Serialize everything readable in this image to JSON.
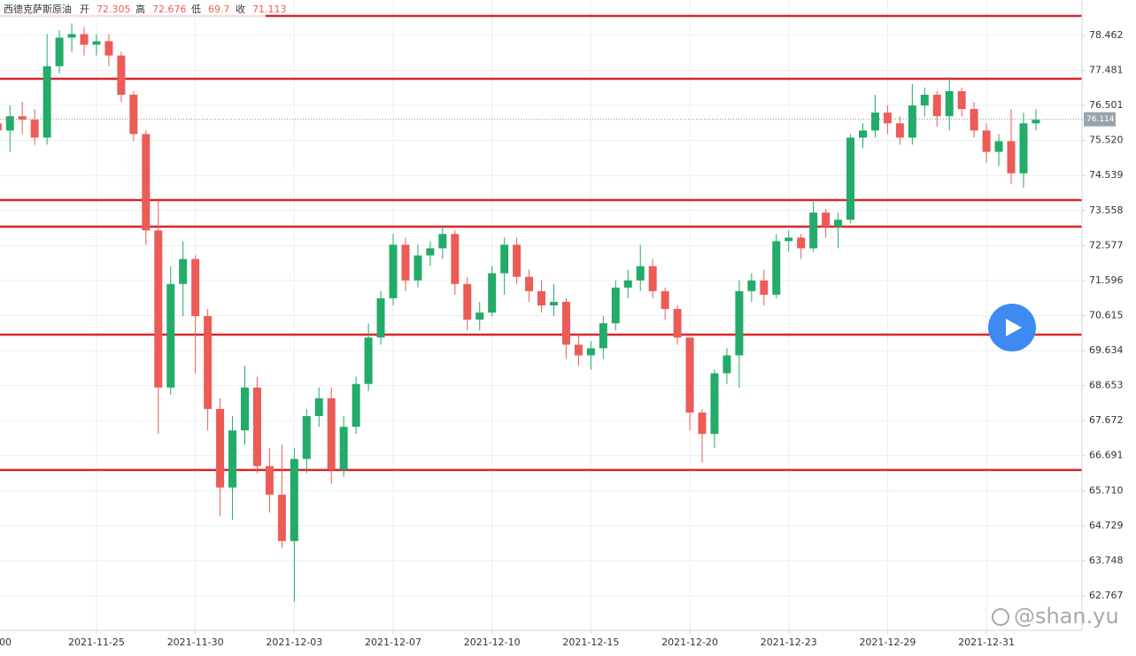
{
  "chart_data": {
    "type": "candlestick",
    "header": {
      "name": "西德克萨斯原油",
      "open_label": "开",
      "open": 72.305,
      "high_label": "高",
      "high": 72.676,
      "low_label": "低",
      "low": 69.7,
      "close_label": "收",
      "close": 71.113
    },
    "categories": [
      "00",
      null,
      null,
      null,
      null,
      null,
      null,
      null,
      "2021-11-25",
      null,
      null,
      null,
      null,
      null,
      null,
      null,
      "2021-11-30",
      null,
      null,
      null,
      null,
      null,
      null,
      null,
      "2021-12-03",
      null,
      null,
      null,
      null,
      null,
      null,
      null,
      "2021-12-07",
      null,
      null,
      null,
      null,
      null,
      null,
      null,
      "2021-12-10",
      null,
      null,
      null,
      null,
      null,
      null,
      null,
      "2021-12-15",
      null,
      null,
      null,
      null,
      null,
      null,
      null,
      "2021-12-20",
      null,
      null,
      null,
      null,
      null,
      null,
      null,
      "2021-12-23",
      null,
      null,
      null,
      null,
      null,
      null,
      null,
      "2021-12-29",
      null,
      null,
      null,
      null,
      null,
      null,
      null,
      "2021-12-31",
      null,
      null,
      null,
      null
    ],
    "open": [
      76.0,
      75.8,
      76.2,
      76.1,
      75.6,
      77.6,
      78.4,
      78.5,
      78.2,
      78.3,
      77.9,
      76.8,
      75.7,
      73.0,
      68.6,
      71.5,
      72.2,
      70.6,
      68.0,
      65.8,
      67.4,
      68.6,
      66.4,
      65.6,
      64.3,
      66.6,
      67.8,
      68.3,
      66.3,
      67.5,
      68.7,
      70.0,
      71.1,
      72.6,
      71.6,
      72.3,
      72.5,
      72.9,
      71.5,
      70.5,
      70.7,
      71.8,
      72.6,
      71.7,
      71.3,
      70.9,
      71.0,
      69.8,
      69.5,
      69.7,
      70.4,
      71.4,
      71.6,
      72.0,
      71.3,
      70.8,
      70.0,
      67.9,
      67.3,
      69.0,
      69.5,
      71.3,
      71.6,
      71.2,
      72.7,
      72.8,
      72.5,
      73.5,
      73.1,
      73.3,
      75.6,
      75.8,
      76.3,
      76.0,
      75.6,
      76.5,
      76.8,
      76.2,
      76.9,
      76.4,
      75.8,
      75.2,
      75.5,
      74.6,
      76.0
    ],
    "high": [
      76.4,
      76.5,
      76.6,
      76.4,
      78.5,
      78.6,
      78.8,
      78.7,
      78.5,
      78.5,
      78.0,
      76.9,
      75.8,
      73.9,
      72.0,
      72.7,
      72.3,
      70.8,
      68.3,
      67.8,
      69.2,
      68.9,
      66.9,
      67.0,
      66.9,
      68.0,
      68.6,
      68.6,
      67.8,
      68.9,
      70.4,
      71.3,
      72.9,
      72.8,
      72.6,
      72.7,
      73.1,
      73.0,
      71.7,
      71.0,
      72.0,
      72.8,
      72.8,
      71.9,
      71.6,
      71.5,
      71.1,
      70.1,
      69.9,
      70.6,
      71.6,
      71.9,
      72.6,
      72.2,
      71.4,
      70.9,
      70.0,
      68.0,
      69.1,
      69.7,
      71.6,
      71.8,
      71.9,
      72.9,
      73.0,
      72.9,
      73.8,
      73.6,
      73.5,
      75.7,
      76.0,
      76.8,
      76.5,
      76.2,
      77.1,
      77.0,
      76.9,
      77.3,
      77.0,
      76.6,
      76.0,
      75.7,
      76.4,
      76.3,
      76.4
    ],
    "low": [
      75.6,
      75.2,
      75.7,
      75.4,
      75.4,
      77.4,
      78.0,
      77.9,
      77.9,
      77.6,
      76.6,
      75.5,
      72.6,
      67.3,
      68.4,
      70.6,
      69.0,
      67.4,
      65.0,
      64.9,
      67.0,
      66.2,
      65.1,
      64.1,
      62.6,
      66.2,
      67.5,
      65.9,
      66.1,
      67.3,
      68.5,
      69.8,
      70.9,
      71.3,
      71.4,
      72.0,
      72.2,
      71.2,
      70.2,
      70.2,
      70.6,
      71.2,
      71.5,
      71.0,
      70.7,
      70.6,
      69.4,
      69.2,
      69.1,
      69.4,
      70.2,
      71.1,
      71.3,
      71.1,
      70.5,
      69.8,
      67.4,
      66.5,
      66.9,
      68.7,
      68.6,
      71.0,
      70.9,
      71.1,
      72.4,
      72.2,
      72.4,
      72.8,
      72.5,
      73.2,
      75.3,
      75.6,
      75.7,
      75.4,
      75.4,
      76.2,
      75.9,
      75.8,
      76.2,
      75.6,
      74.9,
      74.8,
      74.3,
      74.2,
      75.8
    ],
    "close": [
      75.8,
      76.2,
      76.1,
      75.6,
      77.6,
      78.4,
      78.5,
      78.2,
      78.3,
      77.9,
      76.8,
      75.7,
      73.0,
      68.6,
      71.5,
      72.2,
      70.6,
      68.0,
      65.8,
      67.4,
      68.6,
      66.4,
      65.6,
      64.3,
      66.6,
      67.8,
      68.3,
      66.3,
      67.5,
      68.7,
      70.0,
      71.1,
      72.6,
      71.6,
      72.3,
      72.5,
      72.9,
      71.5,
      70.5,
      70.7,
      71.8,
      72.6,
      71.7,
      71.3,
      70.9,
      71.0,
      69.8,
      69.5,
      69.7,
      70.4,
      71.4,
      71.6,
      72.0,
      71.3,
      70.8,
      70.0,
      67.9,
      67.3,
      69.0,
      69.5,
      71.3,
      71.6,
      71.2,
      72.7,
      72.8,
      72.5,
      73.5,
      73.1,
      73.3,
      75.6,
      75.8,
      76.3,
      76.0,
      75.6,
      76.5,
      76.8,
      76.2,
      76.9,
      76.4,
      75.8,
      75.2,
      75.5,
      74.6,
      76.0,
      76.1
    ],
    "up_color": "#22ab69",
    "down_color": "#ec5b56",
    "last_price": 76.114,
    "levels": [
      79.007,
      77.247,
      73.85,
      73.106,
      70.08,
      66.29
    ],
    "level_color": "#d8262b",
    "ylim": [
      61.8,
      79.454
    ],
    "yticks": [
      62.767,
      63.748,
      64.729,
      {
        "value": 65.71,
        "label": "65.710"
      },
      66.691,
      67.672,
      68.653,
      69.634,
      70.615,
      71.596,
      72.577,
      73.558,
      74.539,
      {
        "value": 75.52,
        "label": "75.520"
      },
      76.501,
      77.481,
      78.462
    ],
    "grid": true,
    "watermark": "@shan.yu"
  }
}
